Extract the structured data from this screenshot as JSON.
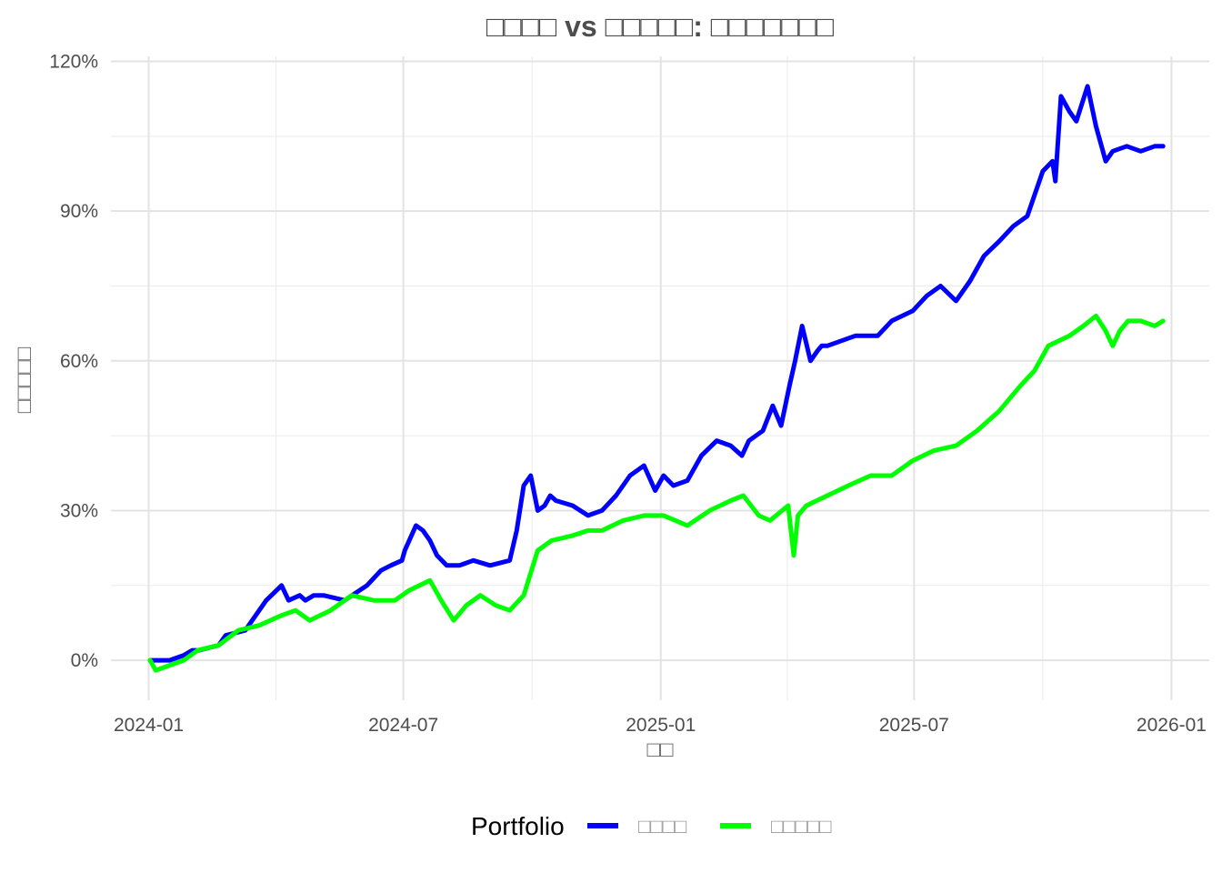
{
  "chart_data": {
    "type": "line",
    "title": "□□□□ vs □□□□□: □□□□□□□",
    "xlabel": "□□",
    "ylabel": "□□□□□",
    "x_ticks": [
      "2024-01",
      "2024-07",
      "2025-01",
      "2025-07",
      "2026-01"
    ],
    "y_ticks": [
      "0%",
      "30%",
      "60%",
      "90%",
      "120%"
    ],
    "xlim": [
      "2023-12-05",
      "2026-01-28"
    ],
    "ylim": [
      -0.08,
      1.21
    ],
    "grid": true,
    "legend": {
      "title": "Portfolio",
      "position": "bottom",
      "entries": [
        "□□□□",
        "□□□□□"
      ]
    },
    "series": [
      {
        "name": "□□□□",
        "color": "#0000ff",
        "x": [
          "2024-01-02",
          "2024-01-16",
          "2024-01-26",
          "2024-02-01",
          "2024-02-06",
          "2024-02-20",
          "2024-02-25",
          "2024-03-10",
          "2024-03-25",
          "2024-04-05",
          "2024-04-10",
          "2024-04-18",
          "2024-04-22",
          "2024-04-28",
          "2024-05-05",
          "2024-05-20",
          "2024-06-05",
          "2024-06-15",
          "2024-06-22",
          "2024-06-30",
          "2024-07-02",
          "2024-07-10",
          "2024-07-15",
          "2024-07-20",
          "2024-07-25",
          "2024-08-01",
          "2024-08-10",
          "2024-08-20",
          "2024-09-01",
          "2024-09-15",
          "2024-09-20",
          "2024-09-25",
          "2024-09-30",
          "2024-10-05",
          "2024-10-10",
          "2024-10-14",
          "2024-10-18",
          "2024-10-30",
          "2024-11-10",
          "2024-11-20",
          "2024-11-30",
          "2024-12-10",
          "2024-12-20",
          "2024-12-28",
          "2025-01-03",
          "2025-01-10",
          "2025-01-20",
          "2025-01-30",
          "2025-02-10",
          "2025-02-20",
          "2025-02-28",
          "2025-03-05",
          "2025-03-15",
          "2025-03-22",
          "2025-03-28",
          "2025-04-03",
          "2025-04-07",
          "2025-04-12",
          "2025-04-18",
          "2025-04-23",
          "2025-04-26",
          "2025-04-30",
          "2025-05-10",
          "2025-05-20",
          "2025-06-05",
          "2025-06-15",
          "2025-06-30",
          "2025-07-10",
          "2025-07-20",
          "2025-07-31",
          "2025-08-10",
          "2025-08-20",
          "2025-08-31",
          "2025-09-10",
          "2025-09-20",
          "2025-10-01",
          "2025-10-08",
          "2025-10-10",
          "2025-10-14",
          "2025-10-20",
          "2025-10-25",
          "2025-11-02",
          "2025-11-08",
          "2025-11-15",
          "2025-11-20",
          "2025-11-30",
          "2025-12-10",
          "2025-12-20",
          "2025-12-26"
        ],
        "y": [
          0.0,
          0.0,
          0.01,
          0.02,
          0.02,
          0.03,
          0.05,
          0.06,
          0.12,
          0.15,
          0.12,
          0.13,
          0.12,
          0.13,
          0.13,
          0.12,
          0.15,
          0.18,
          0.19,
          0.2,
          0.22,
          0.27,
          0.26,
          0.24,
          0.21,
          0.19,
          0.19,
          0.2,
          0.19,
          0.2,
          0.26,
          0.35,
          0.37,
          0.3,
          0.31,
          0.33,
          0.32,
          0.31,
          0.29,
          0.3,
          0.33,
          0.37,
          0.39,
          0.34,
          0.37,
          0.35,
          0.36,
          0.41,
          0.44,
          0.43,
          0.41,
          0.44,
          0.46,
          0.51,
          0.47,
          0.55,
          0.6,
          0.67,
          0.6,
          0.62,
          0.63,
          0.63,
          0.64,
          0.65,
          0.65,
          0.68,
          0.7,
          0.73,
          0.75,
          0.72,
          0.76,
          0.81,
          0.84,
          0.87,
          0.89,
          0.98,
          1.0,
          0.96,
          1.13,
          1.1,
          1.08,
          1.15,
          1.07,
          1.0,
          1.02,
          1.03,
          1.02,
          1.03,
          1.03
        ]
      },
      {
        "name": "□□□□□",
        "color": "#00ff00",
        "x": [
          "2024-01-02",
          "2024-01-06",
          "2024-01-16",
          "2024-01-26",
          "2024-02-05",
          "2024-02-20",
          "2024-03-05",
          "2024-03-20",
          "2024-04-05",
          "2024-04-15",
          "2024-04-25",
          "2024-05-10",
          "2024-05-25",
          "2024-06-10",
          "2024-06-25",
          "2024-07-05",
          "2024-07-20",
          "2024-07-28",
          "2024-08-06",
          "2024-08-15",
          "2024-08-25",
          "2024-09-05",
          "2024-09-15",
          "2024-09-25",
          "2024-10-05",
          "2024-10-15",
          "2024-10-30",
          "2024-11-10",
          "2024-11-20",
          "2024-12-05",
          "2024-12-20",
          "2025-01-03",
          "2025-01-20",
          "2025-02-05",
          "2025-02-20",
          "2025-03-01",
          "2025-03-12",
          "2025-03-20",
          "2025-04-02",
          "2025-04-06",
          "2025-04-09",
          "2025-04-15",
          "2025-04-30",
          "2025-05-15",
          "2025-05-31",
          "2025-06-15",
          "2025-06-30",
          "2025-07-15",
          "2025-07-31",
          "2025-08-15",
          "2025-08-31",
          "2025-09-15",
          "2025-09-25",
          "2025-10-05",
          "2025-10-20",
          "2025-10-30",
          "2025-11-08",
          "2025-11-15",
          "2025-11-20",
          "2025-11-25",
          "2025-12-01",
          "2025-12-10",
          "2025-12-20",
          "2025-12-26"
        ],
        "y": [
          0.0,
          -0.02,
          -0.01,
          0.0,
          0.02,
          0.03,
          0.06,
          0.07,
          0.09,
          0.1,
          0.08,
          0.1,
          0.13,
          0.12,
          0.12,
          0.14,
          0.16,
          0.12,
          0.08,
          0.11,
          0.13,
          0.11,
          0.1,
          0.13,
          0.22,
          0.24,
          0.25,
          0.26,
          0.26,
          0.28,
          0.29,
          0.29,
          0.27,
          0.3,
          0.32,
          0.33,
          0.29,
          0.28,
          0.31,
          0.21,
          0.29,
          0.31,
          0.33,
          0.35,
          0.37,
          0.37,
          0.4,
          0.42,
          0.43,
          0.46,
          0.5,
          0.55,
          0.58,
          0.63,
          0.65,
          0.67,
          0.69,
          0.66,
          0.63,
          0.66,
          0.68,
          0.68,
          0.67,
          0.68
        ]
      }
    ]
  }
}
